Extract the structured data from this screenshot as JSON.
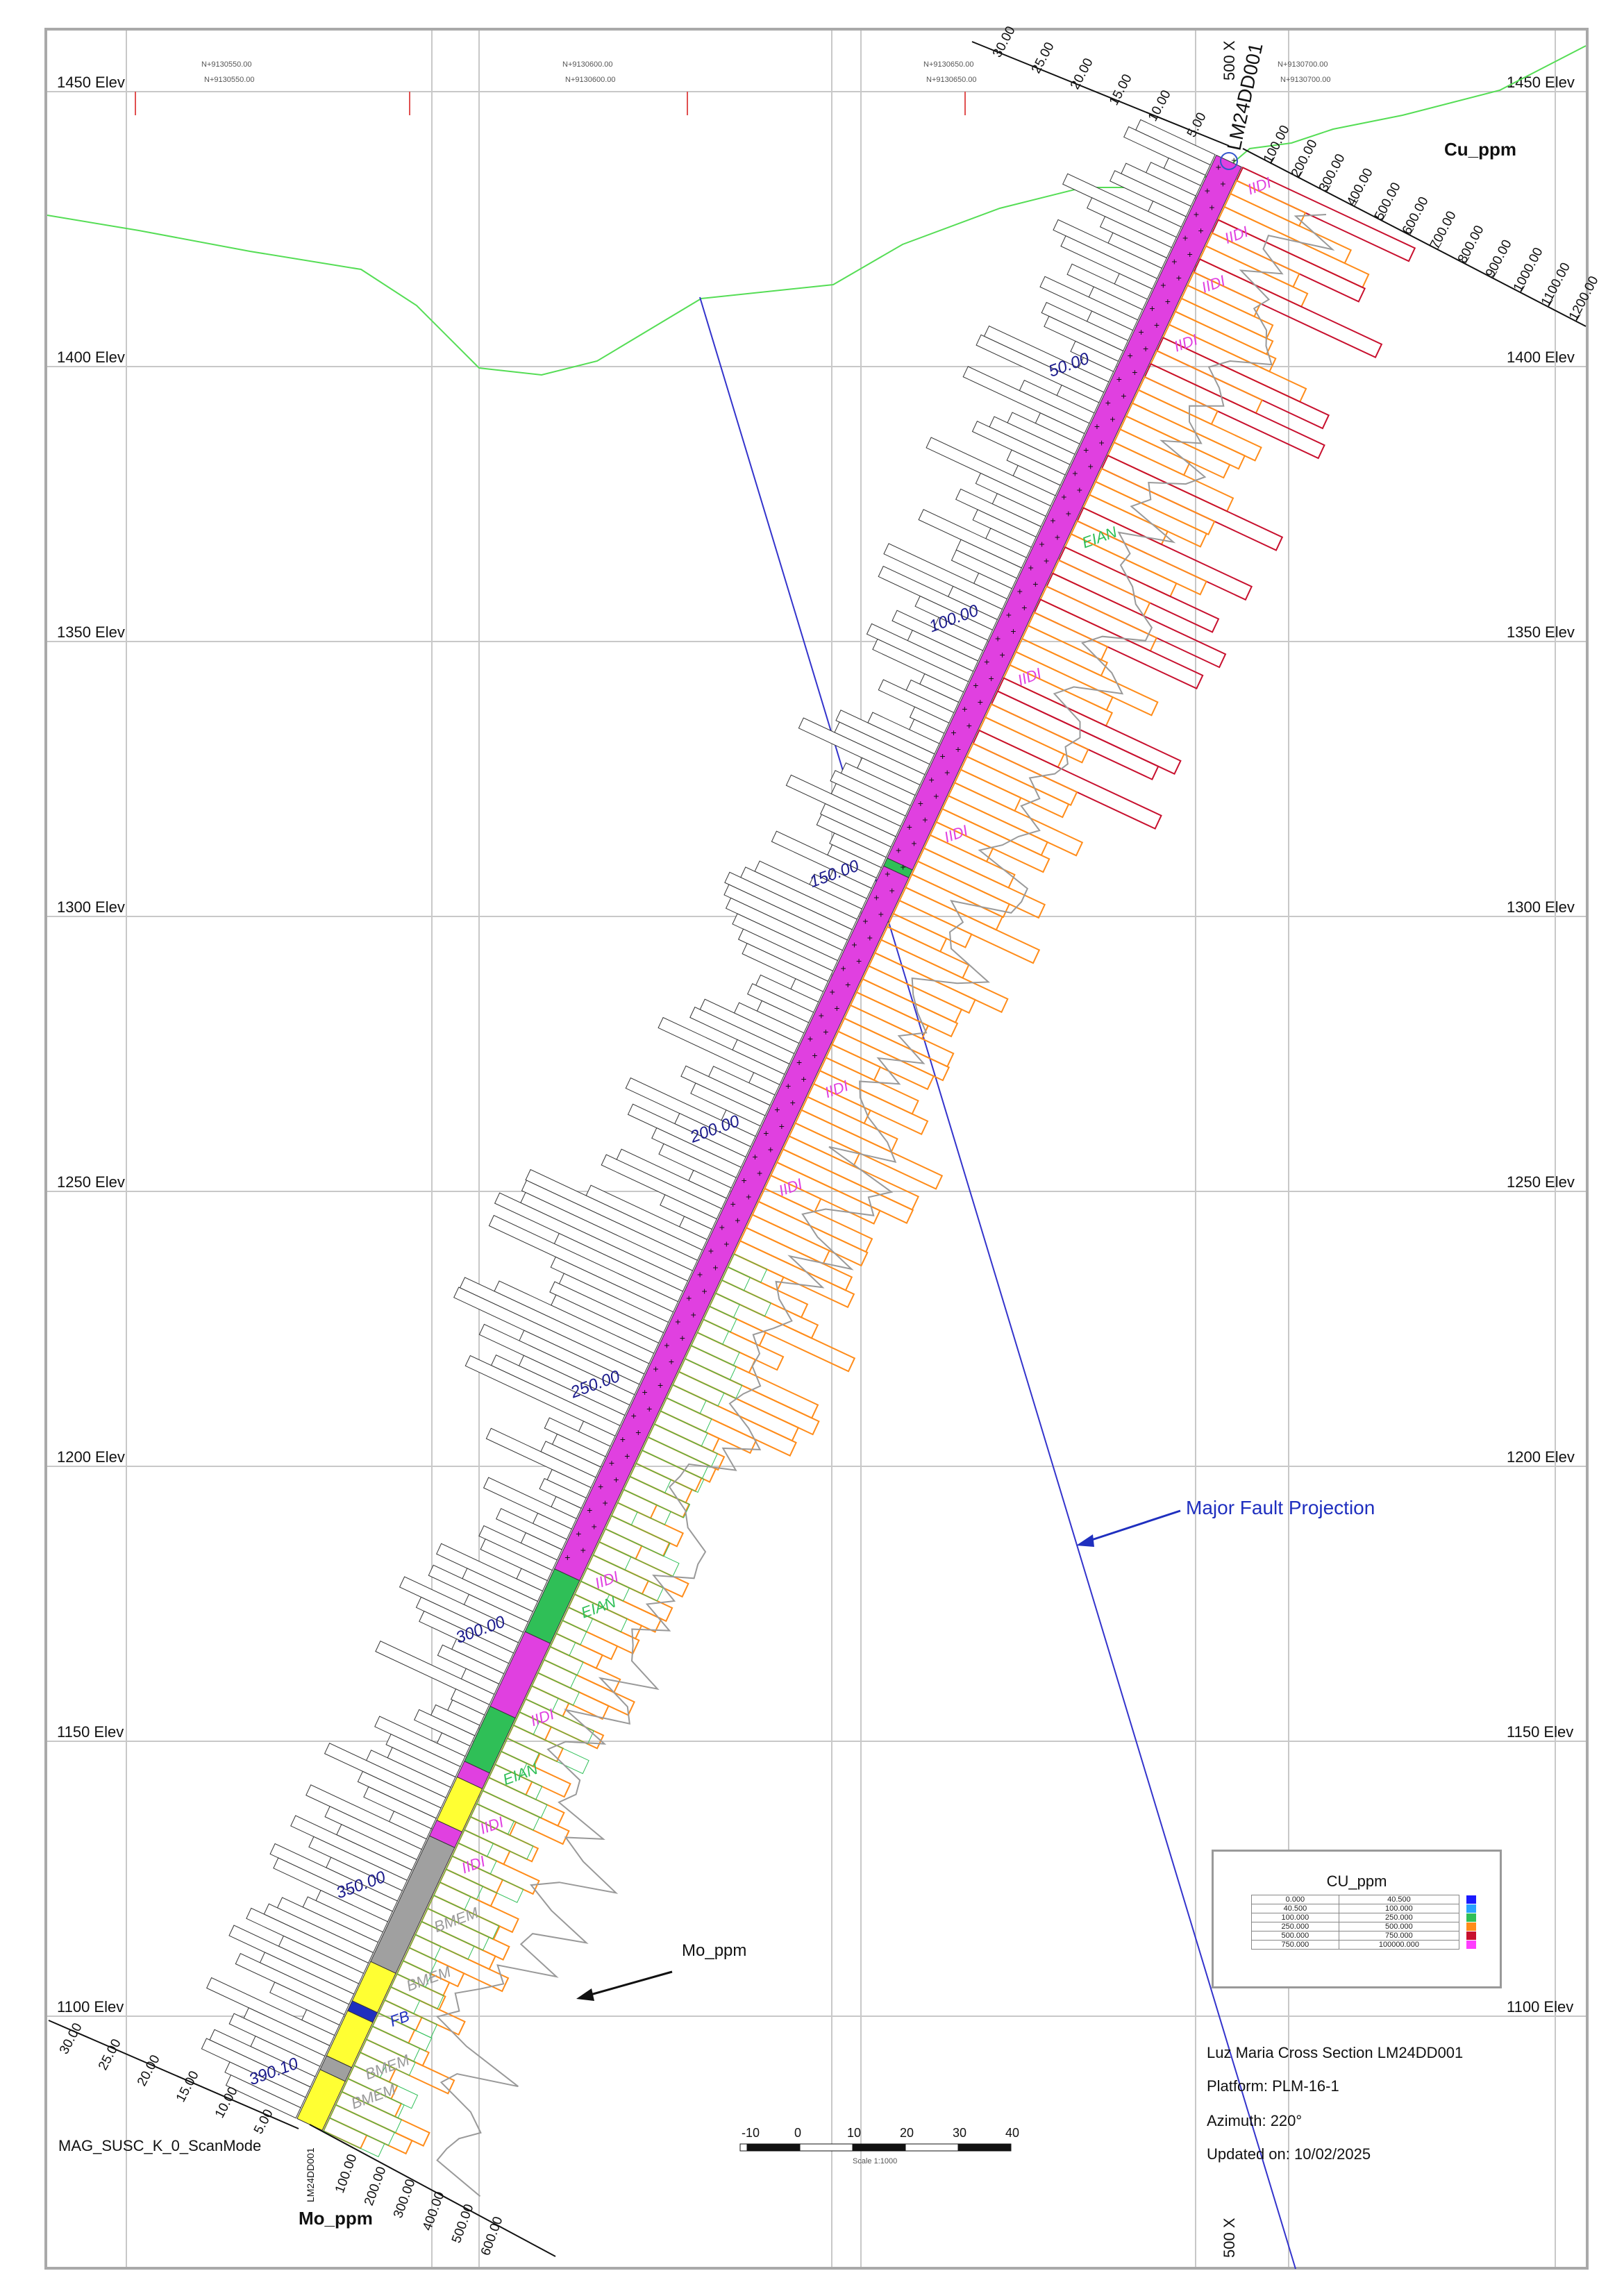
{
  "elevations": [
    "1450 Elev",
    "1400 Elev",
    "1350 Elev",
    "1300 Elev",
    "1250 Elev",
    "1200 Elev",
    "1150 Elev",
    "1100 Elev"
  ],
  "grid_top_labels": [
    "N+9130550.00",
    "N+9130600.00",
    "N+9130650.00",
    "N+9130700.00"
  ],
  "depth_labels": [
    "50.00",
    "100.00",
    "150.00",
    "200.00",
    "250.00",
    "300.00",
    "350.00",
    "390.10"
  ],
  "lithology_labels": [
    "IIDI",
    "IIDI",
    "IIDI",
    "IIDI",
    "EIAN",
    "IIDI",
    "IIDI",
    "IIDI",
    "IIDI",
    "IIDI",
    "EIAN",
    "IIDI",
    "EIAN",
    "IIDI",
    "IIDI",
    "BMEM",
    "BMEM",
    "FB",
    "BMEM",
    "BMEM"
  ],
  "lithology_colors": {
    "IIDI": "#e040e0",
    "EIAN": "#2fbf57",
    "BMEM": "#a0a0a0",
    "FB": "#1f2fbf"
  },
  "hole_id": "LM24DD001",
  "cu_axis": {
    "label": "Cu_ppm",
    "ticks": [
      "100.00",
      "200.00",
      "300.00",
      "400.00",
      "500.00",
      "600.00",
      "700.00",
      "800.00",
      "900.00",
      "1000.00",
      "1100.00",
      "1200.00"
    ]
  },
  "mo_axis": {
    "label": "Mo_ppm",
    "ticks": [
      "100.00",
      "200.00",
      "300.00",
      "400.00",
      "500.00",
      "600.00"
    ]
  },
  "mag_axis": {
    "label": "MAG_SUSC_K_0_ScanMode",
    "ticks": [
      "5.00",
      "10.00",
      "15.00",
      "20.00",
      "25.00",
      "30.00"
    ]
  },
  "scale_markers": {
    "top": "500 X",
    "bottom": "500 X"
  },
  "annotations": {
    "fault": "Major Fault Projection",
    "mo_curve": "Mo_ppm"
  },
  "scale_bar": {
    "ticks": [
      "-10",
      "0",
      "10",
      "20",
      "30",
      "40"
    ],
    "caption": "Scale 1:1000"
  },
  "legend": {
    "title": "CU_ppm",
    "rows": [
      {
        "from": "0.000",
        "to": "40.500",
        "color": "#1a1aff"
      },
      {
        "from": "40.500",
        "to": "100.000",
        "color": "#29a3ff"
      },
      {
        "from": "100.000",
        "to": "250.000",
        "color": "#2fbf57"
      },
      {
        "from": "250.000",
        "to": "500.000",
        "color": "#ff8c1a"
      },
      {
        "from": "500.000",
        "to": "750.000",
        "color": "#c8102e"
      },
      {
        "from": "750.000",
        "to": "100000.000",
        "color": "#ff3dff"
      }
    ]
  },
  "info": {
    "title": "Luz Maria Cross Section LM24DD001",
    "platform": "Platform: PLM-16-1",
    "azimuth": "Azimuth: 220°",
    "updated": "Updated on: 10/02/2025"
  },
  "colors": {
    "topography": "#55dd55",
    "fault": "#3333cc",
    "cu_bar_orange": "#ff8c1a",
    "cu_bar_red": "#c8102e",
    "mo_bar": "#2fbf57",
    "mag_bar": "#333333",
    "mo_line": "#999999"
  }
}
